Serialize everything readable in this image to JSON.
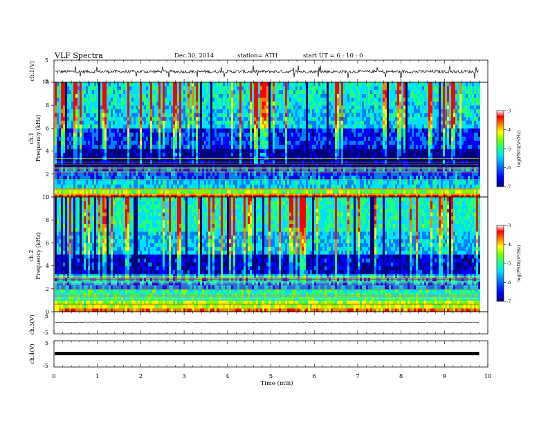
{
  "header": {
    "title": "VLF  Spectra",
    "date": "Dec.30, 2014",
    "station": "station= ATH",
    "start": "start  UT  =    6  : 10 : 0"
  },
  "chart_data": [
    {
      "type": "line",
      "name": "ch1-waveform",
      "ylabel": "ch.1(V)",
      "ylim": [
        -5,
        5
      ],
      "yticks": [
        "5",
        "-5"
      ],
      "xlim": [
        0,
        10
      ],
      "x_end_min": 9.8,
      "series_description_values": {
        "baseline": -0.2,
        "noise_amplitude": 0.7,
        "spike_amplitude": 2.5
      }
    },
    {
      "type": "heatmap",
      "name": "ch1-spectrogram",
      "ylabel": "ch.1\nFrequency  (kHz)",
      "ylim": [
        0,
        10
      ],
      "yticks": [
        "0",
        "2",
        "4",
        "6",
        "8",
        "10"
      ],
      "xlim": [
        0,
        10
      ],
      "x_end_min": 9.8,
      "colorbar": {
        "label": "log(PSD)(V²/Hz)",
        "range": [
          -7,
          -3
        ],
        "ticks": [
          "-3",
          "-4",
          "-5",
          "-6",
          "-7"
        ]
      },
      "bands_logpsd": [
        {
          "f": [
            0,
            0.3
          ],
          "v": -3.4
        },
        {
          "f": [
            0.3,
            0.7
          ],
          "v": -4.6
        },
        {
          "f": [
            0.7,
            1.5
          ],
          "v": -5.5
        },
        {
          "f": [
            1.5,
            2.6
          ],
          "v": -6.0
        },
        {
          "f": [
            2.6,
            4.2
          ],
          "v": -6.9
        },
        {
          "f": [
            4.2,
            6.0
          ],
          "v": -6.2
        },
        {
          "f": [
            6.0,
            8.0
          ],
          "v": -5.5
        },
        {
          "f": [
            8.0,
            10.0
          ],
          "v": -5.3
        }
      ]
    },
    {
      "type": "heatmap",
      "name": "ch2-spectrogram",
      "ylabel": "ch.2\nFrequency  (kHz)",
      "ylim": [
        0,
        10
      ],
      "yticks": [
        "0",
        "2",
        "4",
        "6",
        "8",
        "10"
      ],
      "xlim": [
        0,
        10
      ],
      "x_end_min": 9.8,
      "colorbar": {
        "label": "log(PSD)(V²/Hz)",
        "range": [
          -7,
          -3
        ],
        "ticks": [
          "-3",
          "-4",
          "-5",
          "-6",
          "-7"
        ]
      },
      "bands_logpsd": [
        {
          "f": [
            0,
            0.3
          ],
          "v": -3.6
        },
        {
          "f": [
            0.3,
            1.0
          ],
          "v": -4.4
        },
        {
          "f": [
            1.0,
            2.0
          ],
          "v": -5.1
        },
        {
          "f": [
            2.0,
            3.3
          ],
          "v": -5.8
        },
        {
          "f": [
            3.3,
            5.0
          ],
          "v": -6.5
        },
        {
          "f": [
            5.0,
            7.0
          ],
          "v": -5.6
        },
        {
          "f": [
            7.0,
            10.0
          ],
          "v": -5.2
        }
      ]
    },
    {
      "type": "line",
      "name": "ch3-waveform",
      "ylabel": "ch.3(V)",
      "ylim": [
        -5,
        5
      ],
      "yticks": [
        "5",
        "-5"
      ],
      "xlim": [
        0,
        10
      ],
      "x_end_min": 9.8,
      "series_description_values": {
        "baseline": 0.2,
        "noise_amplitude": 0.15
      }
    },
    {
      "type": "line",
      "name": "ch4-waveform",
      "ylabel": "ch.4(V)",
      "ylim": [
        -5,
        5
      ],
      "yticks": [
        "5",
        "-5"
      ],
      "xlim": [
        0,
        10
      ],
      "x_end_min": 9.8,
      "series_description_values": {
        "baseline": 0.0,
        "band_thickness": 0.5
      }
    }
  ],
  "xaxis": {
    "label": "Time  (min)",
    "ticks": [
      "0",
      "1",
      "2",
      "3",
      "4",
      "5",
      "6",
      "7",
      "8",
      "9",
      "10"
    ]
  },
  "colors": {
    "colormap": [
      "#00007a",
      "#0000ff",
      "#0080ff",
      "#00e0ff",
      "#20ff80",
      "#80ff00",
      "#ffff00",
      "#ff8000",
      "#ff0000",
      "#ffffff"
    ]
  }
}
